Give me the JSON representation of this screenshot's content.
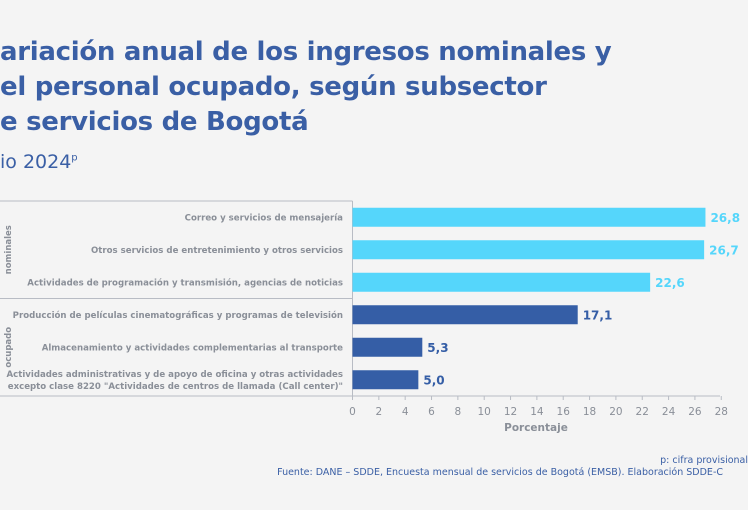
{
  "title_lines": [
    "ariación anual de los ingresos nominales y",
    "el personal ocupado, según subsector",
    "e servicios de Bogotá"
  ],
  "subtitle": "io 2024",
  "subtitle_sup": "p",
  "footnote": "p: cifra provisional",
  "source": "Fuente: DANE – SDDE, Encuesta mensual de servicios de Bogotá (EMSB). Elaboración SDDE-C",
  "colors": {
    "title": "#3a5fa5",
    "nominales": "#55d6fb",
    "ocupado": "#355ea6",
    "label": "#8a8f98"
  },
  "chart_data": {
    "type": "bar",
    "orientation": "horizontal",
    "xlabel": "Porcentaje",
    "xlim": [
      0,
      28
    ],
    "xticks": [
      0,
      2,
      4,
      6,
      8,
      10,
      12,
      14,
      16,
      18,
      20,
      22,
      24,
      26,
      28
    ],
    "groups": [
      {
        "name": "nominales",
        "color": "#55d6fb",
        "categories": [
          {
            "label": [
              "Correo y servicios de mensajería"
            ],
            "value": 26.8,
            "display": "26,8"
          },
          {
            "label": [
              "Otros servicios de entretenimiento y otros servicios"
            ],
            "value": 26.7,
            "display": "26,7"
          },
          {
            "label": [
              "Actividades de programación y transmisión, agencias de noticias"
            ],
            "value": 22.6,
            "display": "22,6"
          }
        ]
      },
      {
        "name": "ocupado",
        "color": "#355ea6",
        "categories": [
          {
            "label": [
              "Producción de películas cinematográficas y programas de televisión"
            ],
            "value": 17.1,
            "display": "17,1"
          },
          {
            "label": [
              "Almacenamiento y actividades complementarias al transporte"
            ],
            "value": 5.3,
            "display": "5,3"
          },
          {
            "label": [
              "Actividades administrativas y de apoyo de oficina y otras actividades",
              "excepto clase 8220 \"Actividades de centros de llamada (Call center)\""
            ],
            "value": 5.0,
            "display": "5,0"
          }
        ]
      }
    ]
  }
}
